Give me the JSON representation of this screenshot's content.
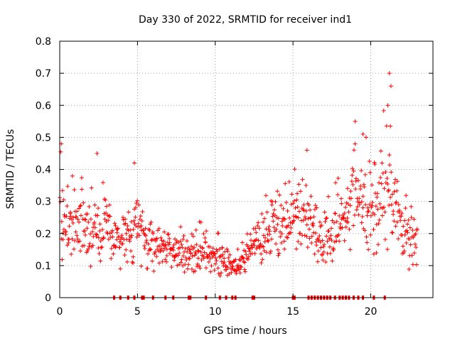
{
  "chart_data": {
    "type": "scatter",
    "title": "Day 330 of 2022, SRMTID for receiver ind1",
    "xlabel": "GPS time / hours",
    "ylabel": "SRMTID / TECUs",
    "xlim": [
      0,
      24
    ],
    "ylim": [
      0,
      0.8
    ],
    "grid": true,
    "legend": "none",
    "marker": "+",
    "color": "#ff0000",
    "x_ticks": [
      0,
      5,
      10,
      15,
      20
    ],
    "x_tick_labels": [
      "0",
      "5",
      "10",
      "15",
      "20"
    ],
    "y_ticks": [
      0,
      0.1,
      0.2,
      0.3,
      0.4,
      0.5,
      0.6,
      0.7,
      0.8
    ],
    "y_tick_labels": [
      "0",
      "0.1",
      "0.2",
      "0.3",
      "0.4",
      "0.5",
      "0.6",
      "0.7",
      "0.8"
    ],
    "envelope": {
      "x": [
        0.0,
        0.5,
        1.0,
        1.5,
        2.0,
        2.5,
        3.0,
        3.5,
        4.0,
        4.5,
        5.0,
        5.5,
        6.0,
        6.5,
        7.0,
        7.5,
        8.0,
        8.5,
        9.0,
        9.5,
        10.0,
        10.5,
        11.0,
        11.5,
        12.0,
        12.5,
        13.0,
        13.5,
        14.0,
        14.5,
        15.0,
        15.5,
        16.0,
        16.5,
        17.0,
        17.5,
        18.0,
        18.5,
        19.0,
        19.5,
        20.0,
        20.5,
        21.0,
        21.5,
        22.0,
        22.5,
        23.0
      ],
      "y_low": [
        0.1,
        0.09,
        0.11,
        0.1,
        0.08,
        0.07,
        0.08,
        0.09,
        0.08,
        0.09,
        0.1,
        0.09,
        0.08,
        0.08,
        0.07,
        0.08,
        0.07,
        0.07,
        0.07,
        0.07,
        0.07,
        0.05,
        0.06,
        0.06,
        0.07,
        0.09,
        0.1,
        0.11,
        0.12,
        0.14,
        0.14,
        0.11,
        0.12,
        0.11,
        0.08,
        0.09,
        0.12,
        0.12,
        0.15,
        0.11,
        0.12,
        0.13,
        0.14,
        0.16,
        0.1,
        0.08,
        0.09
      ],
      "y_high": [
        0.48,
        0.35,
        0.45,
        0.38,
        0.36,
        0.33,
        0.45,
        0.28,
        0.3,
        0.34,
        0.42,
        0.31,
        0.28,
        0.25,
        0.24,
        0.25,
        0.24,
        0.22,
        0.24,
        0.23,
        0.22,
        0.19,
        0.16,
        0.15,
        0.2,
        0.26,
        0.32,
        0.36,
        0.38,
        0.4,
        0.41,
        0.46,
        0.35,
        0.36,
        0.34,
        0.33,
        0.4,
        0.41,
        0.55,
        0.52,
        0.48,
        0.5,
        0.7,
        0.52,
        0.36,
        0.33,
        0.29
      ],
      "points_per_unit_x": 38,
      "seed": 330
    },
    "zero_markers_x": [
      3.5,
      3.9,
      4.4,
      4.8,
      5.3,
      5.4,
      6.0,
      6.8,
      7.3,
      8.3,
      8.4,
      9.4,
      10.3,
      10.7,
      11.1,
      11.3,
      12.4,
      12.5,
      15.0,
      15.1,
      16.0,
      16.2,
      16.4,
      16.6,
      16.8,
      17.0,
      17.2,
      17.4,
      17.7,
      18.0,
      18.2,
      18.4,
      18.6,
      18.9,
      19.2,
      19.5,
      20.2,
      20.9
    ],
    "notable_peaks": [
      {
        "x": 0.1,
        "y": 0.48
      },
      {
        "x": 2.4,
        "y": 0.45
      },
      {
        "x": 4.8,
        "y": 0.42
      },
      {
        "x": 15.9,
        "y": 0.46
      },
      {
        "x": 19.0,
        "y": 0.55
      },
      {
        "x": 19.5,
        "y": 0.51
      },
      {
        "x": 21.2,
        "y": 0.7
      },
      {
        "x": 21.1,
        "y": 0.6
      },
      {
        "x": 21.3,
        "y": 0.66
      }
    ]
  }
}
